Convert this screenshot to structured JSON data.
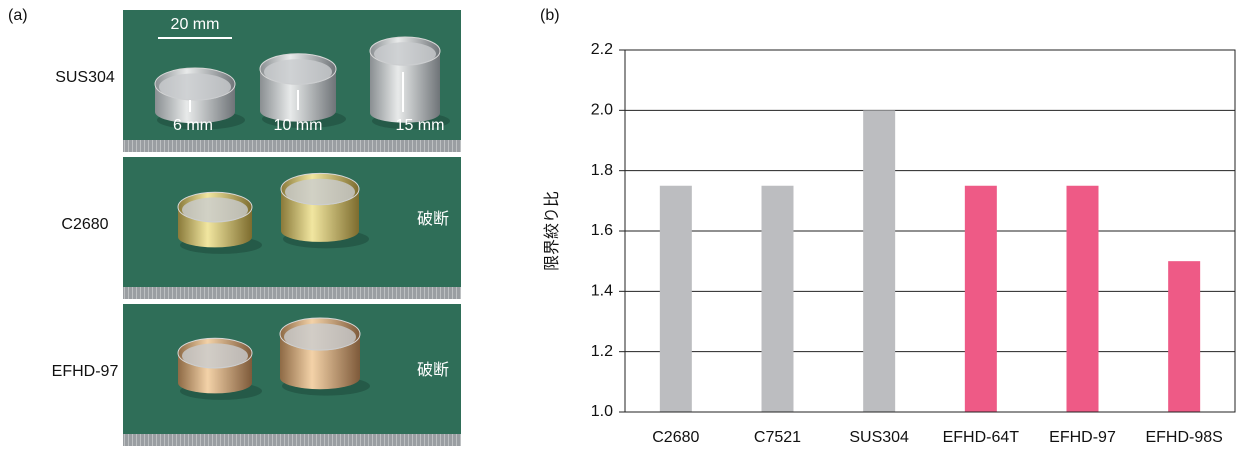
{
  "panel_a": {
    "label": "(a)",
    "rows": [
      {
        "name": "SUS304",
        "annotations": [
          "20 mm",
          "6 mm",
          "10 mm",
          "15 mm"
        ]
      },
      {
        "name": "C2680",
        "annotations": [
          "破断"
        ]
      },
      {
        "name": "EFHD-97",
        "annotations": [
          "破断"
        ]
      }
    ]
  },
  "chart_data": {
    "type": "bar",
    "panel_label": "(b)",
    "y_label": "限界絞り比",
    "categories": [
      "C2680",
      "C7521",
      "SUS304",
      "EFHD-64T",
      "EFHD-97",
      "EFHD-98S"
    ],
    "values": [
      1.75,
      1.75,
      2.0,
      1.75,
      1.75,
      1.5
    ],
    "colors": [
      "#bcbdc0",
      "#bcbdc0",
      "#bcbdc0",
      "#ee5a86",
      "#ee5a86",
      "#ee5a86"
    ],
    "ylim": [
      1.0,
      2.2
    ],
    "yticks": [
      {
        "value": 1.0,
        "label": "1.0"
      },
      1.2,
      1.4,
      1.6,
      1.8,
      {
        "value": 2.0,
        "label": "2.0"
      },
      2.2
    ],
    "grid": true
  }
}
